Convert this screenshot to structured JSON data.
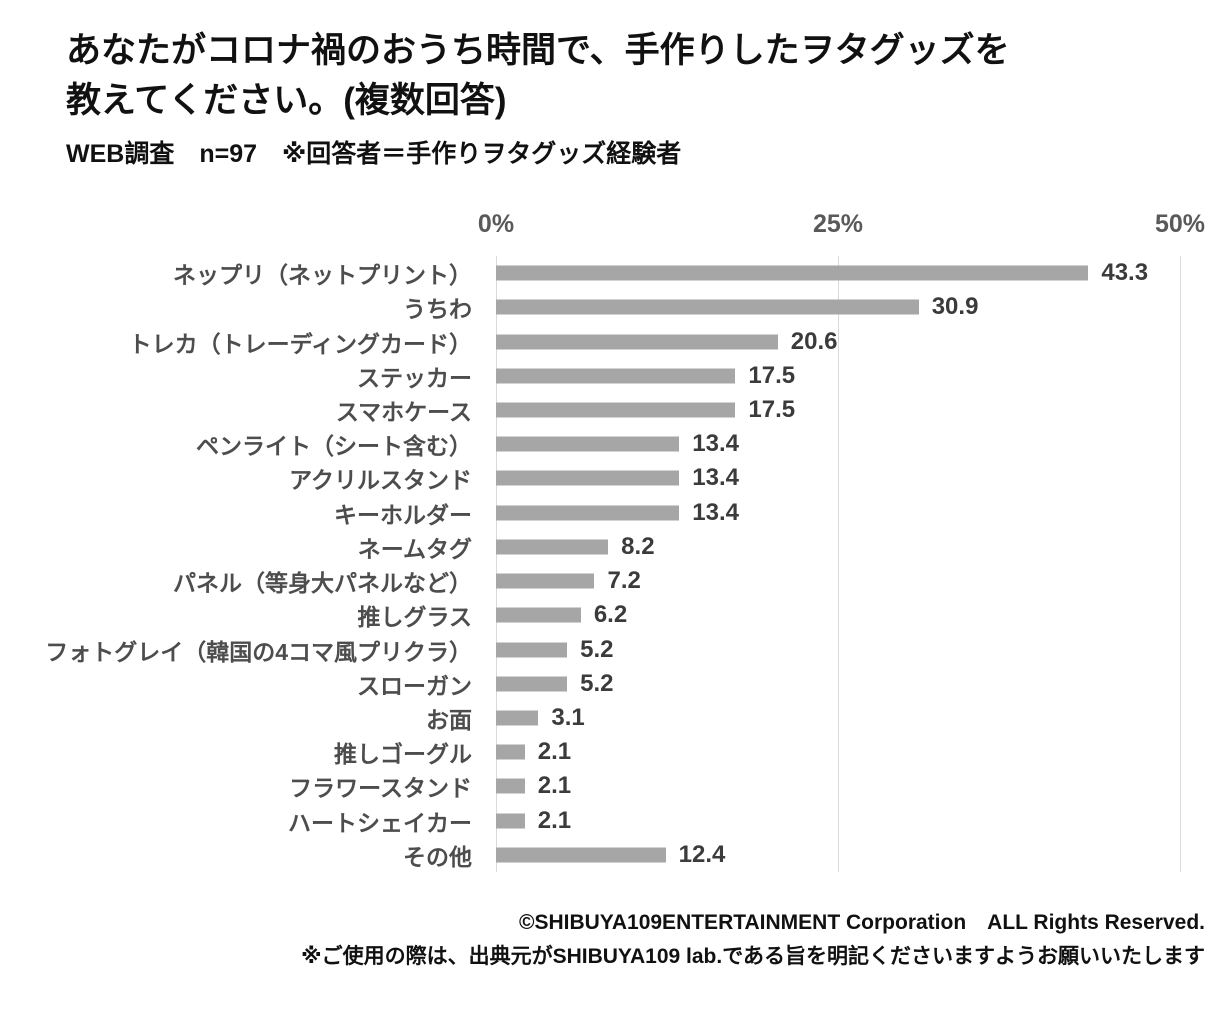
{
  "header": {
    "title": "あなたがコロナ禍のおうち時間で、手作りしたヲタグッズを\n教えてください。(複数回答)",
    "subtitle": "WEB調査　n=97　※回答者＝手作りヲタグッズ経験者"
  },
  "chart_data": {
    "type": "bar",
    "orientation": "horizontal",
    "title": "あなたがコロナ禍のおうち時間で、手作りしたヲタグッズを教えてください。(複数回答)",
    "subtitle": "WEB調査　n=97　※回答者＝手作りヲタグッズ経験者",
    "categories": [
      "ネップリ（ネットプリント）",
      "うちわ",
      "トレカ（トレーディングカード）",
      "ステッカー",
      "スマホケース",
      "ペンライト（シート含む）",
      "アクリルスタンド",
      "キーホルダー",
      "ネームタグ",
      "パネル（等身大パネルなど）",
      "推しグラス",
      "フォトグレイ（韓国の4コマ風プリクラ）",
      "スローガン",
      "お面",
      "推しゴーグル",
      "フラワースタンド",
      "ハートシェイカー",
      "その他"
    ],
    "values": [
      43.3,
      30.9,
      20.6,
      17.5,
      17.5,
      13.4,
      13.4,
      13.4,
      8.2,
      7.2,
      6.2,
      5.2,
      5.2,
      3.1,
      2.1,
      2.1,
      2.1,
      12.4
    ],
    "unit": "%",
    "xlim": [
      0,
      50
    ],
    "axis_ticks": [
      "0%",
      "25%",
      "50%"
    ],
    "grid": true,
    "legend": false,
    "bar_color": "#a6a6a6",
    "gridline_color": "#d9d9d9",
    "value_label_color": "#3b3b3b",
    "category_label_color": "#4d4d4d",
    "tick_label_color": "#595959"
  },
  "footer": {
    "copyright": "©SHIBUYA109ENTERTAINMENT Corporation　ALL Rights Reserved.",
    "note": "※ご使用の際は、出典元がSHIBUYA109 lab.である旨を明記くださいますようお願いいたします"
  }
}
